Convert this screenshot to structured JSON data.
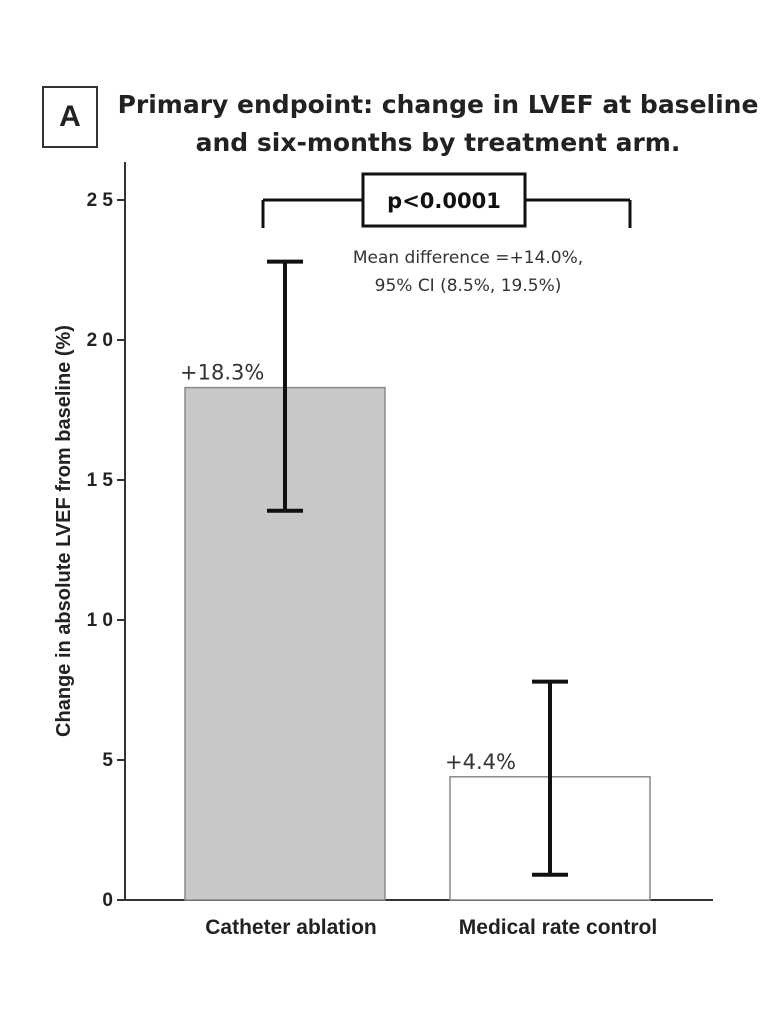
{
  "panel_label": "A",
  "chart_data": {
    "type": "bar",
    "title_lines": [
      "Primary endpoint: change in LVEF at baseline",
      "and six-months by treatment arm."
    ],
    "xlabel": "",
    "ylabel": "Change in absolute LVEF from baseline (%)",
    "ylim": [
      0,
      26
    ],
    "yticks": [
      0,
      5,
      10,
      15,
      20,
      25
    ],
    "ytick_labels": [
      "0",
      "5",
      "1 0",
      "1 5",
      "2 0",
      "2 5"
    ],
    "categories": [
      "Catheter ablation",
      "Medical rate control"
    ],
    "values": [
      18.3,
      4.4
    ],
    "error_low": [
      13.9,
      0.9
    ],
    "error_high": [
      22.8,
      7.8
    ],
    "data_labels": [
      "+18.3%",
      "+4.4%"
    ],
    "bar_colors": [
      "#c8c8c8",
      "#ffffff"
    ],
    "significance": {
      "p_label": "p<0.0001",
      "note_lines": [
        "Mean difference =+14.0%,",
        "95% CI (8.5%, 19.5%)"
      ],
      "bracket_y": 25
    },
    "grid": false
  }
}
